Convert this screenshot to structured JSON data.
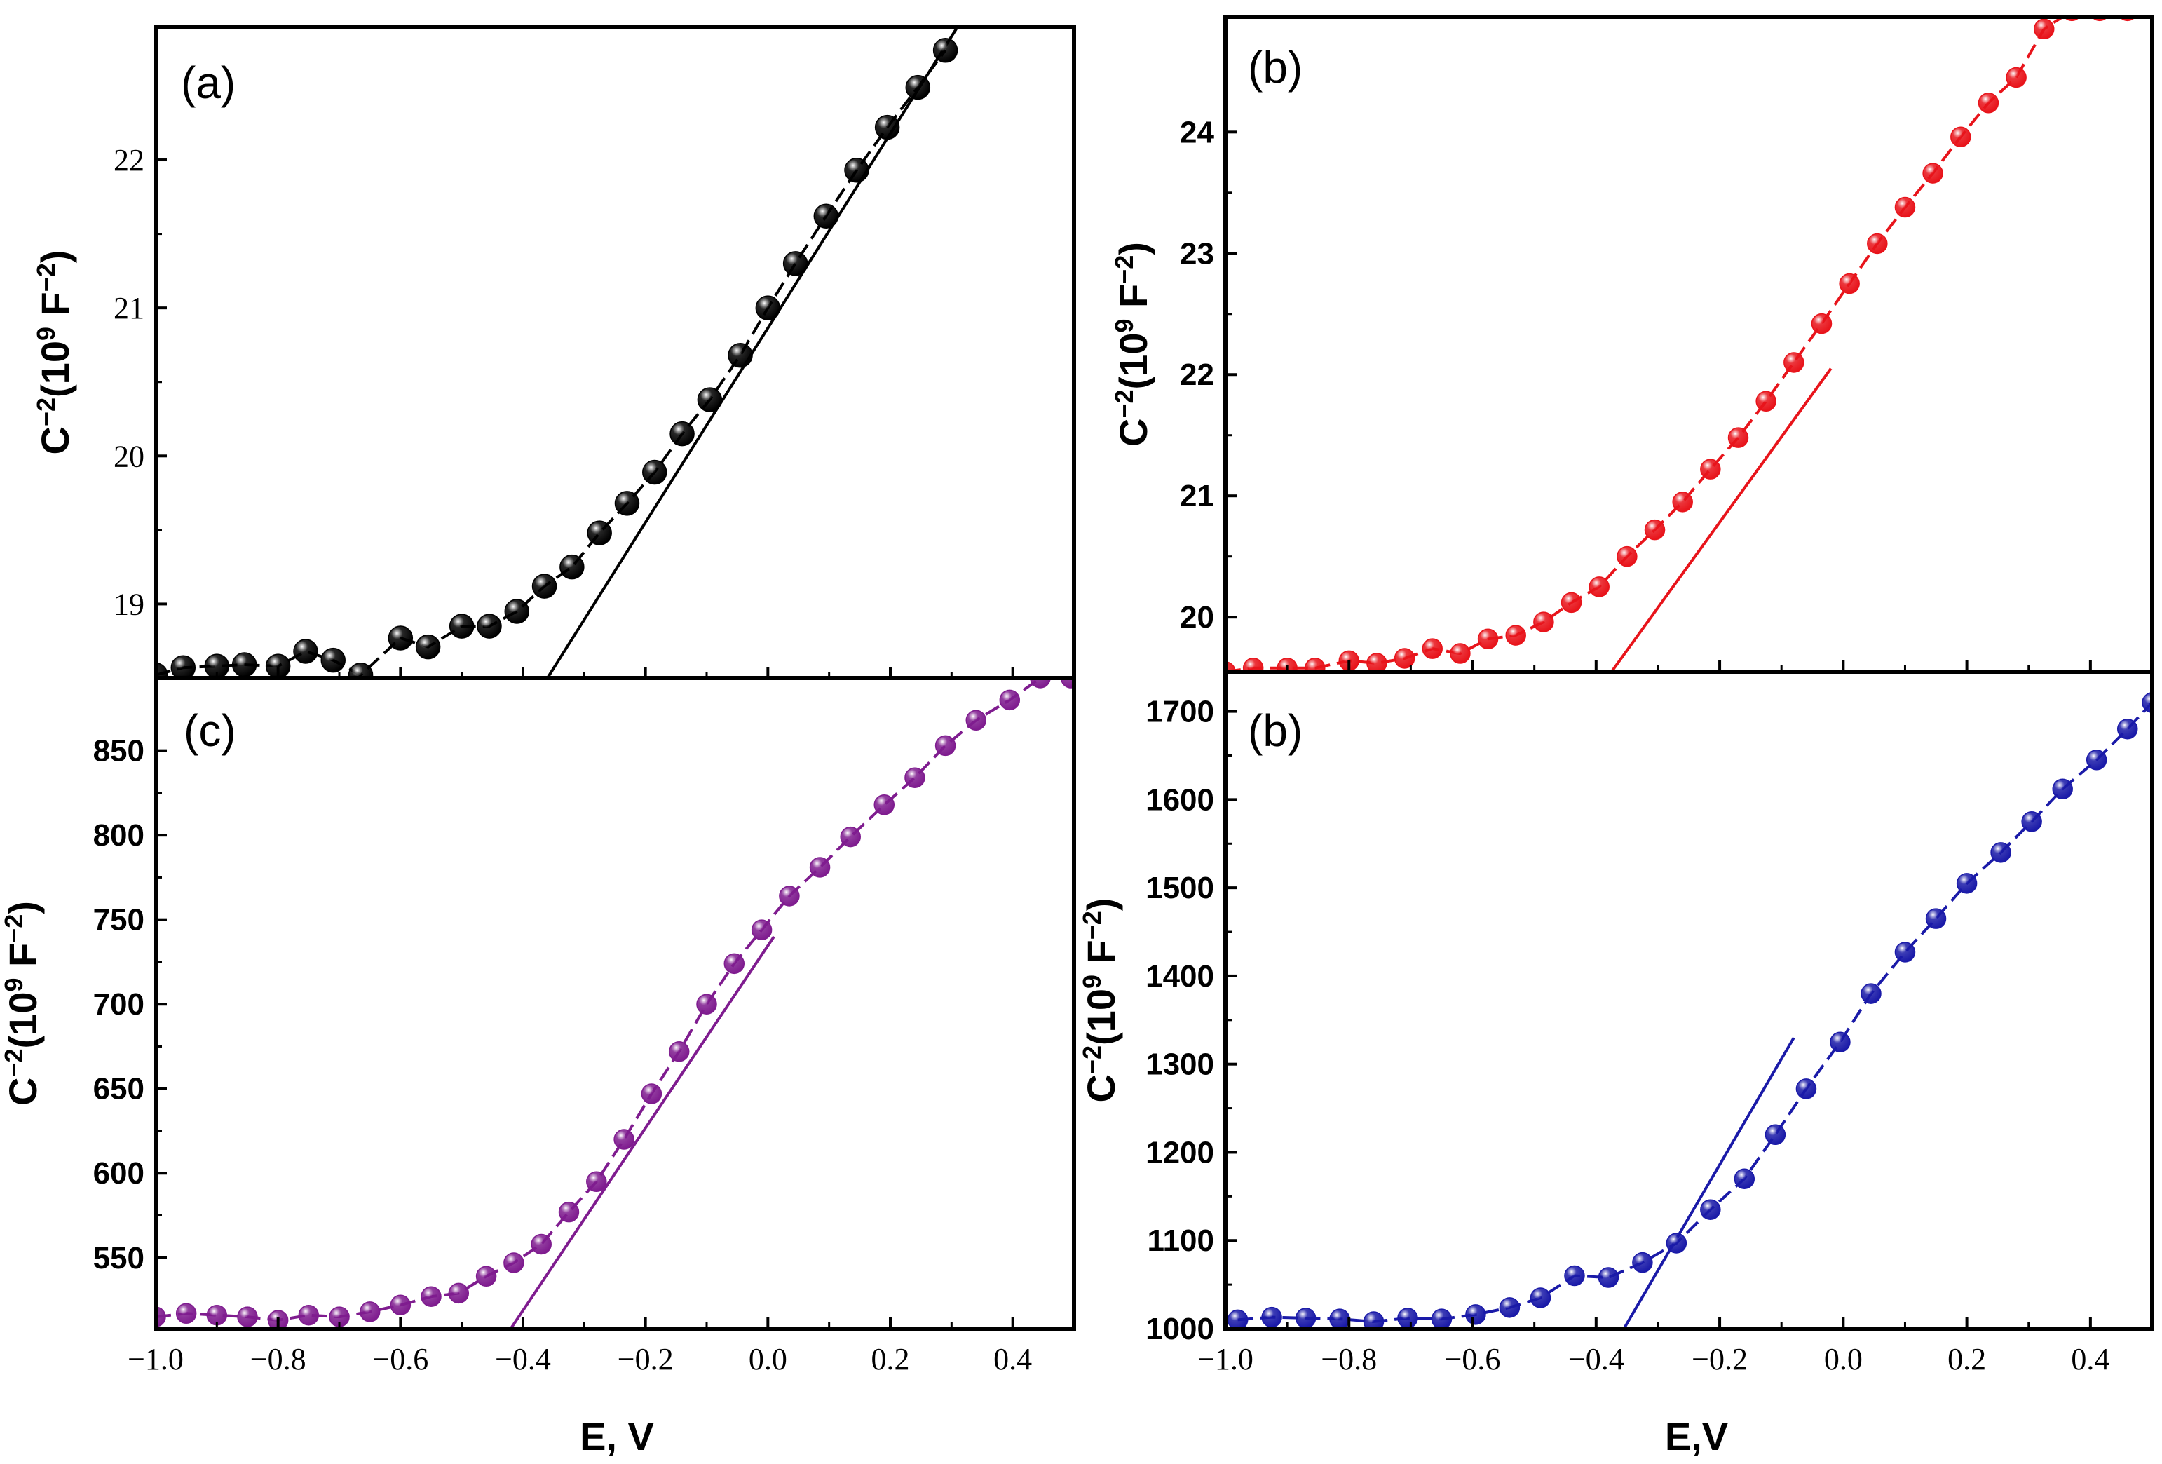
{
  "chart_data": [
    {
      "type": "line",
      "panel_label": "(a)",
      "color": "#000000",
      "ylabel_parts": [
        "C",
        "−2",
        "(10",
        "9",
        " F",
        "−2",
        ")"
      ],
      "xlabel": "",
      "xlim": [
        -1.0,
        0.5
      ],
      "ylim": [
        18.5,
        22.9
      ],
      "yticks": [
        19,
        20,
        21,
        22
      ],
      "yticklabels": [
        "19",
        "20",
        "21",
        "22"
      ],
      "xticks": [
        -1.0,
        -0.8,
        -0.6,
        -0.4,
        -0.2,
        0.0,
        0.2,
        0.4
      ],
      "xticklabels": [],
      "series": [
        {
          "name": "data",
          "x": [
            -1.0,
            -0.955,
            -0.9,
            -0.855,
            -0.8,
            -0.755,
            -0.71,
            -0.665,
            -0.6,
            -0.555,
            -0.5,
            -0.455,
            -0.41,
            -0.365,
            -0.32,
            -0.275,
            -0.23,
            -0.185,
            -0.14,
            -0.095,
            -0.045,
            0.0,
            0.045,
            0.095,
            0.145,
            0.195,
            0.245,
            0.29
          ],
          "y": [
            18.52,
            18.57,
            18.58,
            18.59,
            18.58,
            18.68,
            18.62,
            18.52,
            18.77,
            18.71,
            18.85,
            18.85,
            18.95,
            19.12,
            19.25,
            19.48,
            19.68,
            19.89,
            20.15,
            20.38,
            20.68,
            21.0,
            21.3,
            21.62,
            21.93,
            22.22,
            22.49,
            22.74
          ]
        }
      ],
      "fit_line": {
        "x": [
          -0.36,
          0.31
        ],
        "y": [
          18.5,
          22.9
        ]
      }
    },
    {
      "type": "line",
      "panel_label": "(b)",
      "color": "#e8141b",
      "ylabel_parts": [
        "C",
        "−2",
        "(10",
        "9",
        " F",
        "−2",
        ")"
      ],
      "xlabel": "",
      "xlim": [
        -1.0,
        0.5
      ],
      "ylim": [
        19.55,
        24.95
      ],
      "yticks": [
        20,
        21,
        22,
        23,
        24
      ],
      "yticklabels": [
        "20",
        "21",
        "22",
        "23",
        "24"
      ],
      "xticks": [
        -1.0,
        -0.8,
        -0.6,
        -0.4,
        -0.2,
        0.0,
        0.2,
        0.4
      ],
      "xticklabels": [],
      "series": [
        {
          "name": "data",
          "x": [
            -1.0,
            -0.955,
            -0.9,
            -0.855,
            -0.8,
            -0.755,
            -0.71,
            -0.665,
            -0.62,
            -0.575,
            -0.53,
            -0.485,
            -0.44,
            -0.395,
            -0.35,
            -0.305,
            -0.26,
            -0.215,
            -0.17,
            -0.125,
            -0.08,
            -0.035,
            0.01,
            0.055,
            0.1,
            0.145,
            0.19,
            0.235,
            0.28,
            0.325,
            0.37,
            0.415,
            0.46
          ],
          "y": [
            19.55,
            19.58,
            19.58,
            19.58,
            19.64,
            19.62,
            19.66,
            19.74,
            19.7,
            19.82,
            19.85,
            19.96,
            20.12,
            20.25,
            20.5,
            20.72,
            20.95,
            21.22,
            21.48,
            21.78,
            22.1,
            22.42,
            22.75,
            23.08,
            23.38,
            23.66,
            23.96,
            24.24,
            24.45,
            24.85,
            25.0,
            25.0,
            25.0
          ]
        }
      ],
      "fit_line": {
        "x": [
          -0.375,
          -0.02
        ],
        "y": [
          19.55,
          22.05
        ]
      }
    },
    {
      "type": "line",
      "panel_label": "(c)",
      "color": "#7f1c8f",
      "ylabel_parts": [
        "C",
        "−2",
        "(10",
        "9",
        " F",
        "−2",
        ")"
      ],
      "xlabel": "E, V",
      "xlim": [
        -1.0,
        0.5
      ],
      "ylim": [
        508,
        893
      ],
      "yticks": [
        550,
        600,
        650,
        700,
        750,
        800,
        850
      ],
      "yticklabels": [
        "550",
        "600",
        "650",
        "700",
        "750",
        "800",
        "850"
      ],
      "xticks": [
        -1.0,
        -0.8,
        -0.6,
        -0.4,
        -0.2,
        0.0,
        0.2,
        0.4
      ],
      "xticklabels": [
        "−1.0",
        "−0.8",
        "−0.6",
        "−0.4",
        "−0.2",
        "0.0",
        "0.2",
        "0.4"
      ],
      "series": [
        {
          "name": "data",
          "x": [
            -1.0,
            -0.95,
            -0.9,
            -0.85,
            -0.8,
            -0.75,
            -0.7,
            -0.65,
            -0.6,
            -0.55,
            -0.505,
            -0.46,
            -0.415,
            -0.37,
            -0.325,
            -0.28,
            -0.235,
            -0.19,
            -0.145,
            -0.1,
            -0.055,
            -0.01,
            0.035,
            0.085,
            0.135,
            0.19,
            0.24,
            0.29,
            0.34,
            0.395,
            0.445,
            0.495
          ],
          "y": [
            515,
            517,
            516,
            515,
            513,
            516,
            515,
            518,
            522,
            527,
            529,
            539,
            547,
            558,
            577,
            595,
            620,
            647,
            672,
            700,
            724,
            744,
            764,
            781,
            799,
            818,
            834,
            853,
            868,
            880,
            893,
            893
          ]
        }
      ],
      "fit_line": {
        "x": [
          -0.42,
          0.01
        ],
        "y": [
          508,
          740
        ]
      }
    },
    {
      "type": "line",
      "panel_label": "(b)",
      "color": "#1a1aa8",
      "ylabel_parts": [
        "C",
        "−2",
        "(10",
        "9",
        " F",
        "−2",
        ")"
      ],
      "xlabel": "E,V",
      "xlim": [
        -1.0,
        0.5
      ],
      "ylim": [
        1000,
        1745
      ],
      "yticks": [
        1000,
        1100,
        1200,
        1300,
        1400,
        1500,
        1600,
        1700
      ],
      "yticklabels": [
        "1000",
        "1100",
        "1200",
        "1300",
        "1400",
        "1500",
        "1600",
        "1700"
      ],
      "xticks": [
        -1.0,
        -0.8,
        -0.6,
        -0.4,
        -0.2,
        0.0,
        0.2,
        0.4
      ],
      "xticklabels": [
        "−1.0",
        "−0.8",
        "−0.6",
        "−0.4",
        "−0.2",
        "0.0",
        "0.2",
        "0.4"
      ],
      "series": [
        {
          "name": "data",
          "x": [
            -0.98,
            -0.925,
            -0.87,
            -0.815,
            -0.76,
            -0.705,
            -0.65,
            -0.595,
            -0.54,
            -0.49,
            -0.435,
            -0.38,
            -0.325,
            -0.27,
            -0.215,
            -0.16,
            -0.11,
            -0.06,
            -0.005,
            0.045,
            0.1,
            0.15,
            0.2,
            0.255,
            0.305,
            0.355,
            0.41,
            0.46,
            0.5
          ],
          "y": [
            1010,
            1013,
            1012,
            1011,
            1008,
            1012,
            1011,
            1016,
            1024,
            1035,
            1060,
            1058,
            1075,
            1097,
            1135,
            1170,
            1220,
            1272,
            1325,
            1380,
            1427,
            1465,
            1505,
            1540,
            1575,
            1612,
            1645,
            1680,
            1710
          ]
        }
      ],
      "fit_line": {
        "x": [
          -0.355,
          -0.08
        ],
        "y": [
          1000,
          1330
        ]
      }
    }
  ]
}
